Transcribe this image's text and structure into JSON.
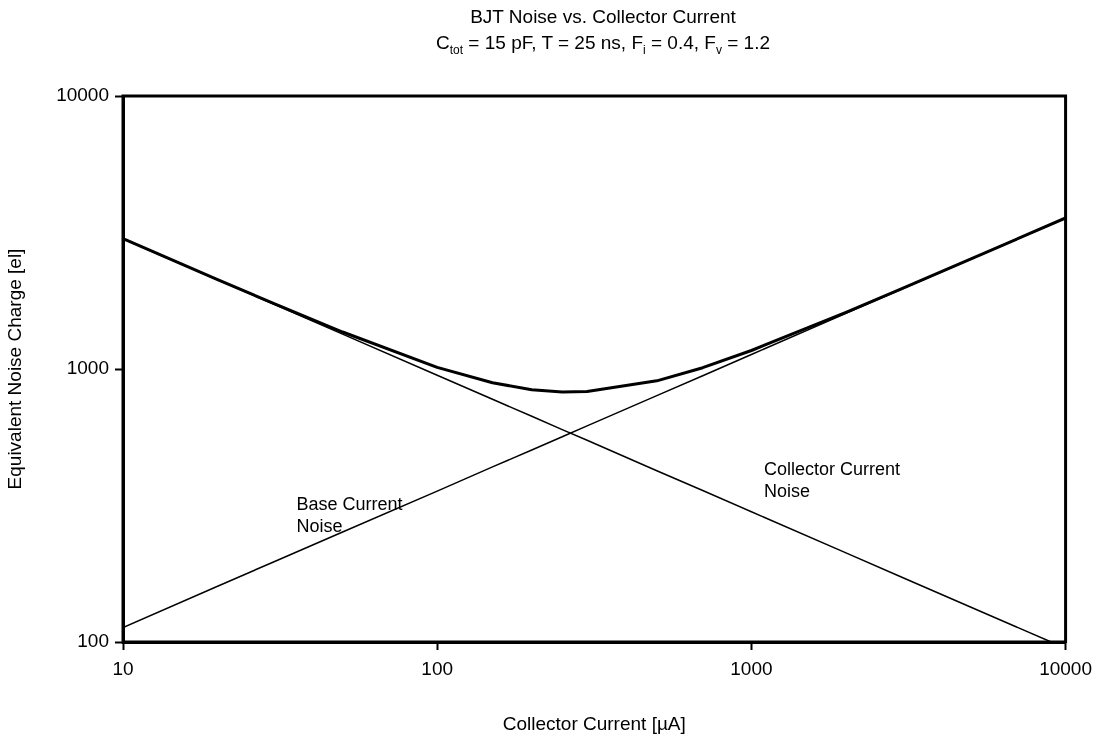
{
  "chart_data": {
    "type": "line",
    "title": "BJT Noise vs. Collector Current",
    "subtitle": "C$_{tot}$ = 15 pF, T = 25 ns, F$_{i}$ = 0.4, F$_{v}$ = 1.2",
    "xlabel": "Collector Current [µA]",
    "ylabel": "Equivalent Noise Charge [el]",
    "x": [
      10,
      20,
      30,
      50,
      100,
      150,
      200,
      250,
      300,
      500,
      700,
      1000,
      2000,
      3000,
      5000,
      10000
    ],
    "series": [
      {
        "color": "#000000",
        "values": [
          3002,
          2127,
          1743,
          1366,
          1014,
          890,
          840,
          824,
          827,
          905,
          1011,
          1169,
          1612,
          1965,
          2531,
          3574
        ]
      },
      {
        "name": "Base Current Noise",
        "color": "#000000",
        "values": [
          113,
          160,
          196,
          253,
          357,
          438,
          505,
          565,
          619,
          799,
          945,
          1130,
          1598,
          1957,
          2527,
          3573
        ]
      },
      {
        "name": "Collector Current Noise",
        "color": "#000000",
        "x": [
          10,
          20,
          30,
          50,
          100,
          150,
          200,
          250,
          300,
          500,
          700,
          1000,
          2000,
          3000,
          5000,
          9000
        ],
        "values": [
          3000,
          2121,
          1732,
          1342,
          949,
          775,
          671,
          600,
          548,
          424,
          359,
          300,
          212,
          173,
          134,
          100
        ]
      }
    ],
    "log": "xy",
    "xlim": [
      10,
      10000
    ],
    "ylim": [
      100,
      10000
    ],
    "xticks": [
      10,
      100,
      1000,
      10000
    ],
    "yticks": [
      100,
      1000,
      10000
    ],
    "grid": false,
    "legend": false,
    "marker": "none",
    "line_style": "solid"
  }
}
